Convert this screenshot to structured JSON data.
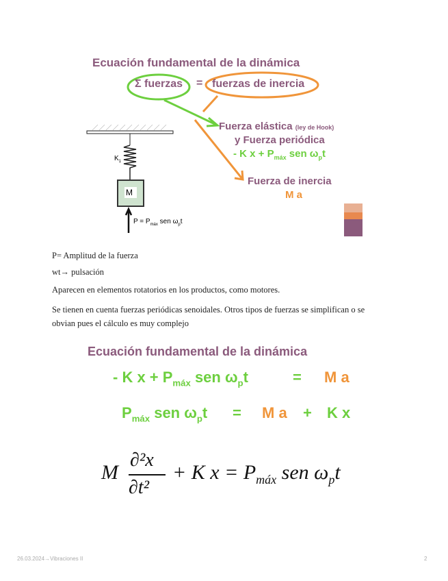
{
  "slide1": {
    "title": "Ecuación fundamental de la dinámica",
    "sum_forces": "Σ fuerzas",
    "equals": "=",
    "inertia_forces": "fuerzas de inercia",
    "elastic_force": "Fuerza elástica",
    "hook_note": "(ley de Hook)",
    "periodic_force": "y Fuerza periódica",
    "eq_left": "- K x + P",
    "eq_sub": "máx",
    "eq_right": " sen ω",
    "eq_p": "p",
    "eq_t": "t",
    "inertia_label": "Fuerza de inercia",
    "inertia_eq": "M a",
    "diagram": {
      "spring_label": "K",
      "spring_sub": "1",
      "mass_label": "M",
      "force_label": "P = P",
      "force_sub": "máx",
      "force_rest": " sen ω",
      "force_p": "p",
      "force_t": "t"
    },
    "colors": {
      "purple": "#8b5a7c",
      "green": "#6dcf3f",
      "orange": "#f0953a"
    }
  },
  "notes": [
    "P= Amplitud de la fuerza",
    "wt→ pulsación",
    "Aparecen en elementos rotatorios en los productos, como motores.",
    "Se tienen en cuenta fuerzas periódicas senoidales. Otros tipos de fuerzas se simplifican o se obvian pues el cálculo es muy complejo"
  ],
  "slide2": {
    "title": "Ecuación fundamental de la dinámica",
    "eq1_left": "- K x  +  P",
    "eq1_sub": "máx",
    "eq1_mid": " sen ω",
    "eq1_p": "p",
    "eq1_t": "t",
    "eq1_eq": "=",
    "eq1_right": "M a",
    "eq2_left": "P",
    "eq2_sub": "máx",
    "eq2_mid": " sen ω",
    "eq2_p": "p",
    "eq2_t": "t",
    "eq2_eq": "=",
    "eq2_ma": "M a",
    "eq2_plus": "+",
    "eq2_kx": "K x"
  },
  "formula": {
    "M": "M",
    "num": "∂²x",
    "den": "∂t²",
    "rest": "+ K  x = P",
    "sub": "máx",
    "sen": " sen ω",
    "p": "p",
    "t": "t"
  },
  "footer": {
    "left": "26.03.2024→Vibraciones II",
    "page": "2"
  }
}
